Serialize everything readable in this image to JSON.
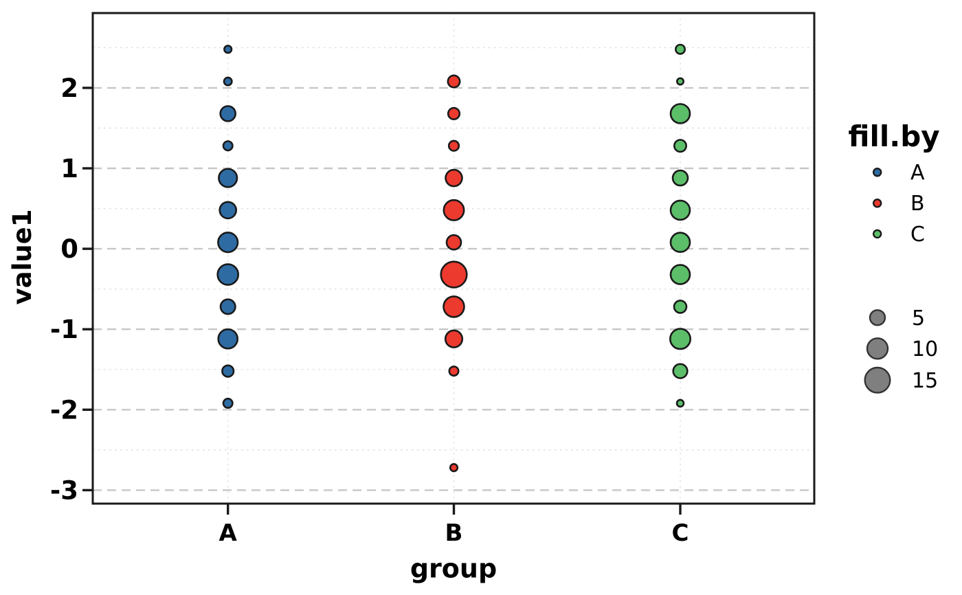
{
  "chart_data": {
    "type": "scatter",
    "subtype": "binned-bubble-dotplot",
    "title": "",
    "xlabel": "group",
    "ylabel": "value1",
    "categories": [
      "A",
      "B",
      "C"
    ],
    "y_ticks": [
      2,
      1,
      0,
      -1,
      -2,
      -3
    ],
    "y_minor": [
      2.5,
      1.5,
      0.5,
      -0.5,
      -1.5,
      -2.5
    ],
    "ylim": [
      -3.15,
      2.92
    ],
    "grid": "on",
    "legend_position": "right",
    "series": [
      {
        "name": "A",
        "color": "#2E6BA3",
        "points": [
          {
            "y": 2.48,
            "count": 1,
            "r": 5.3
          },
          {
            "y": 2.08,
            "count": 1,
            "r": 5.7
          },
          {
            "y": 1.68,
            "count": 5,
            "r": 11.0
          },
          {
            "y": 1.28,
            "count": 2,
            "r": 6.7
          },
          {
            "y": 0.88,
            "count": 8,
            "r": 13.3
          },
          {
            "y": 0.48,
            "count": 6,
            "r": 12.0
          },
          {
            "y": 0.08,
            "count": 9,
            "r": 14.3
          },
          {
            "y": -0.32,
            "count": 10,
            "r": 15.0
          },
          {
            "y": -0.72,
            "count": 5,
            "r": 10.7
          },
          {
            "y": -1.12,
            "count": 9,
            "r": 14.0
          },
          {
            "y": -1.52,
            "count": 3,
            "r": 8.3
          },
          {
            "y": -1.92,
            "count": 2,
            "r": 6.7
          }
        ]
      },
      {
        "name": "B",
        "color": "#EC3A2F",
        "points": [
          {
            "y": 2.08,
            "count": 3,
            "r": 8.7
          },
          {
            "y": 1.68,
            "count": 3,
            "r": 8.3
          },
          {
            "y": 1.28,
            "count": 2,
            "r": 7.3
          },
          {
            "y": 0.88,
            "count": 6,
            "r": 12.0
          },
          {
            "y": 0.48,
            "count": 10,
            "r": 14.7
          },
          {
            "y": 0.08,
            "count": 4,
            "r": 10.5
          },
          {
            "y": -0.32,
            "count": 16,
            "r": 18.8
          },
          {
            "y": -0.72,
            "count": 10,
            "r": 15.0
          },
          {
            "y": -1.12,
            "count": 6,
            "r": 12.3
          },
          {
            "y": -1.52,
            "count": 2,
            "r": 6.7
          },
          {
            "y": -2.72,
            "count": 1,
            "r": 5.3
          }
        ]
      },
      {
        "name": "C",
        "color": "#5CBE69",
        "points": [
          {
            "y": 2.48,
            "count": 2,
            "r": 6.7
          },
          {
            "y": 2.08,
            "count": 1,
            "r": 4.7
          },
          {
            "y": 1.68,
            "count": 9,
            "r": 14.0
          },
          {
            "y": 1.28,
            "count": 3,
            "r": 8.7
          },
          {
            "y": 0.88,
            "count": 5,
            "r": 11.0
          },
          {
            "y": 0.48,
            "count": 9,
            "r": 14.0
          },
          {
            "y": 0.08,
            "count": 9,
            "r": 14.0
          },
          {
            "y": -0.32,
            "count": 9,
            "r": 14.0
          },
          {
            "y": -0.72,
            "count": 3,
            "r": 9.0
          },
          {
            "y": -1.12,
            "count": 10,
            "r": 14.7
          },
          {
            "y": -1.52,
            "count": 4,
            "r": 10.3
          },
          {
            "y": -1.92,
            "count": 1,
            "r": 5.0
          }
        ]
      }
    ],
    "legend": {
      "fill_title": "fill.by",
      "fill_items": [
        {
          "label": "A",
          "color": "#2E6BA3"
        },
        {
          "label": "B",
          "color": "#EC3A2F"
        },
        {
          "label": "C",
          "color": "#5CBE69"
        }
      ],
      "size_items": [
        {
          "label": "5",
          "r": 11.0
        },
        {
          "label": "10",
          "r": 15.0
        },
        {
          "label": "15",
          "r": 18.3
        }
      ],
      "size_fill": "#7F7F7F",
      "size_stroke": "#333333"
    },
    "colors": {
      "bubble_stroke": "#1A1A1A",
      "panel_border": "#1A1A1A",
      "grid_major": "#C7C7C7",
      "grid_minor": "#E0E0E0",
      "grid_vertical": "#E3E3E3",
      "background": "#FFFFFF",
      "text": "#000000"
    }
  }
}
